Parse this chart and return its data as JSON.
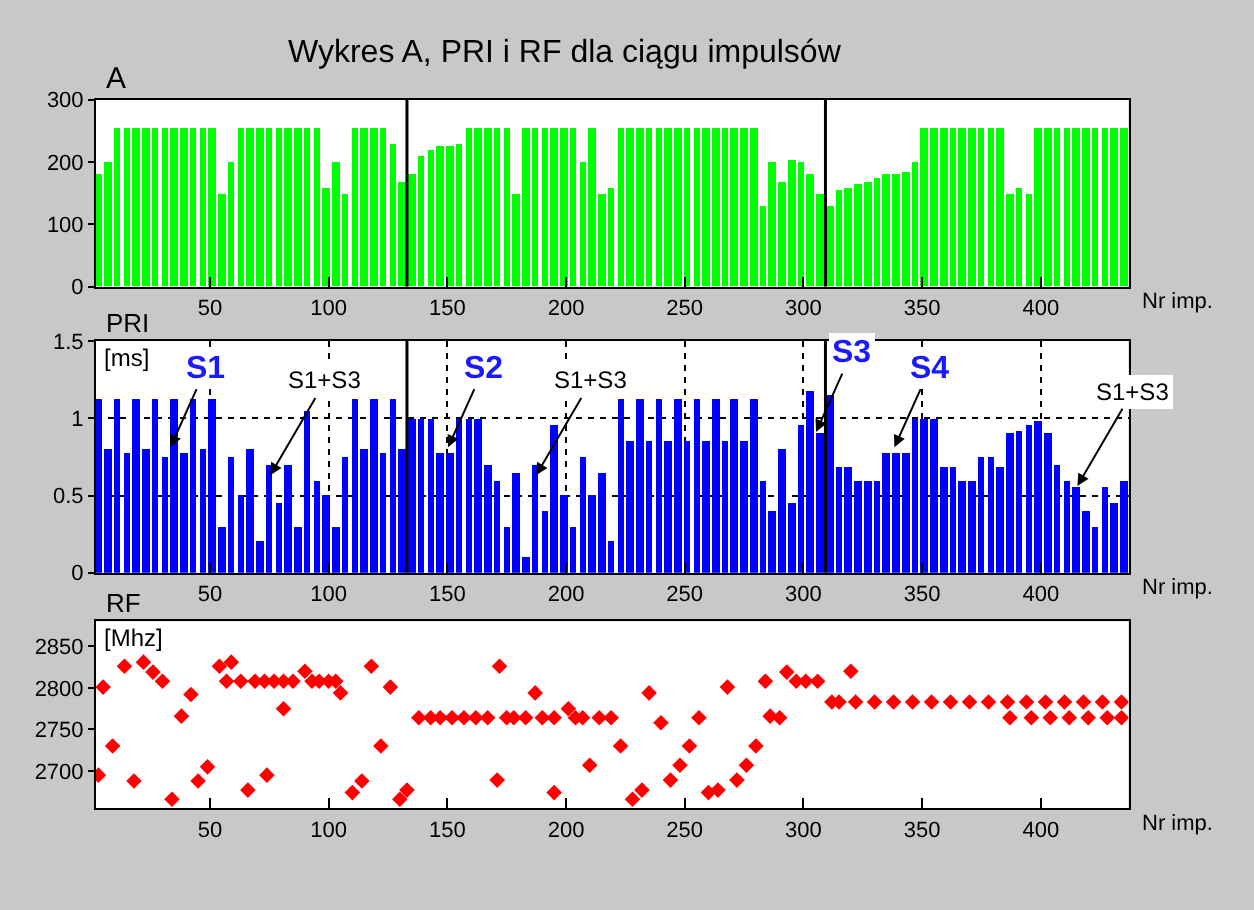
{
  "chart_data": [
    {
      "type": "bar",
      "title": "Wykres A, PRI i RF dla ciągu impulsów",
      "ylabel": "A",
      "xlabel": "Nr imp.",
      "color": "#00ff00",
      "x": [
        3,
        7,
        11,
        15,
        19,
        23,
        27,
        31,
        35,
        39,
        43,
        47,
        51,
        55,
        59,
        63,
        67,
        71,
        75,
        79,
        83,
        87,
        91,
        95,
        99,
        103,
        107,
        111,
        115,
        119,
        123,
        127,
        131,
        135,
        139,
        143,
        147,
        151,
        155,
        159,
        163,
        167,
        171,
        175,
        179,
        183,
        187,
        191,
        195,
        199,
        203,
        207,
        211,
        215,
        219,
        223,
        227,
        231,
        235,
        239,
        243,
        247,
        251,
        255,
        259,
        263,
        267,
        271,
        275,
        279,
        283,
        287,
        291,
        295,
        299,
        303,
        307,
        311,
        315,
        319,
        323,
        327,
        331,
        335,
        339,
        343,
        347,
        351,
        355,
        359,
        363,
        367,
        371,
        375,
        379,
        383,
        387,
        391,
        395,
        399,
        403,
        407,
        411,
        415,
        419,
        423,
        427,
        431,
        435
      ],
      "values": [
        180,
        200,
        255,
        255,
        255,
        255,
        255,
        255,
        255,
        255,
        255,
        255,
        255,
        150,
        200,
        255,
        255,
        255,
        255,
        255,
        255,
        255,
        255,
        255,
        160,
        200,
        150,
        255,
        255,
        255,
        255,
        230,
        170,
        180,
        210,
        220,
        225,
        225,
        230,
        255,
        255,
        255,
        255,
        255,
        150,
        255,
        255,
        255,
        255,
        255,
        255,
        200,
        255,
        150,
        160,
        255,
        255,
        255,
        255,
        255,
        255,
        255,
        255,
        255,
        255,
        255,
        255,
        255,
        255,
        255,
        130,
        200,
        170,
        205,
        200,
        180,
        150,
        130,
        155,
        160,
        165,
        170,
        175,
        180,
        180,
        185,
        200,
        255,
        255,
        255,
        255,
        255,
        255,
        255,
        255,
        255,
        150,
        160,
        150,
        255,
        255,
        255,
        255,
        255,
        255,
        255,
        255,
        255,
        255
      ],
      "xlim": [
        2,
        437
      ],
      "xticks": [
        50,
        100,
        150,
        200,
        250,
        300,
        350,
        400
      ],
      "ylim": [
        0,
        300
      ],
      "yticks": [
        0,
        100,
        200,
        300
      ],
      "grid": false,
      "ref_lines": [
        {
          "axis": "x",
          "value": 133,
          "color": "#000000"
        },
        {
          "axis": "x",
          "value": 309.3,
          "color": "#000000"
        }
      ]
    },
    {
      "type": "bar",
      "ylabel": "PRI",
      "xlabel": "Nr imp.",
      "color": "#0000ff",
      "x": [
        3,
        7,
        11,
        15,
        19,
        23,
        27,
        31,
        35,
        39,
        43,
        47,
        51,
        55,
        59,
        63,
        67,
        71,
        75,
        79,
        83,
        87,
        91,
        95,
        99,
        103,
        107,
        111,
        115,
        119,
        123,
        127,
        131,
        135,
        139,
        143,
        147,
        151,
        155,
        159,
        163,
        167,
        171,
        175,
        179,
        183,
        187,
        191,
        195,
        199,
        203,
        207,
        211,
        215,
        219,
        223,
        227,
        231,
        235,
        239,
        243,
        247,
        251,
        255,
        259,
        263,
        267,
        271,
        275,
        279,
        283,
        287,
        291,
        295,
        299,
        303,
        307,
        311,
        315,
        319,
        323,
        327,
        331,
        335,
        339,
        343,
        347,
        351,
        355,
        359,
        363,
        367,
        371,
        375,
        379,
        383,
        387,
        391,
        395,
        399,
        403,
        407,
        411,
        415,
        419,
        423,
        427,
        431,
        435
      ],
      "values": [
        1.13,
        0.8,
        1.13,
        0.78,
        1.13,
        0.8,
        1.13,
        0.75,
        1.13,
        0.78,
        1.13,
        0.8,
        1.13,
        0.3,
        0.75,
        0.5,
        0.8,
        0.2,
        0.7,
        0.45,
        0.7,
        0.3,
        1.05,
        0.6,
        0.5,
        0.3,
        0.75,
        1.13,
        0.8,
        1.13,
        0.78,
        1.13,
        0.8,
        1.0,
        1.0,
        1.0,
        0.78,
        0.78,
        1.0,
        1.0,
        1.0,
        0.7,
        0.6,
        0.3,
        0.65,
        0.1,
        0.7,
        0.4,
        0.95,
        0.5,
        0.3,
        0.75,
        0.5,
        0.65,
        0.2,
        1.13,
        0.85,
        1.13,
        0.85,
        1.13,
        0.85,
        1.13,
        0.85,
        1.13,
        0.85,
        1.13,
        0.85,
        1.13,
        0.85,
        1.13,
        0.6,
        0.4,
        0.8,
        0.45,
        0.95,
        1.18,
        0.9,
        1.15,
        0.68,
        0.68,
        0.6,
        0.6,
        0.6,
        0.78,
        0.78,
        0.78,
        1.0,
        1.0,
        1.0,
        0.68,
        0.68,
        0.6,
        0.6,
        0.75,
        0.75,
        0.68,
        0.9,
        0.92,
        0.95,
        0.98,
        0.9,
        0.7,
        0.6,
        0.55,
        0.4,
        0.3,
        0.55,
        0.45,
        0.6
      ],
      "xlim": [
        2,
        437
      ],
      "xticks": [
        50,
        100,
        150,
        200,
        250,
        300,
        350,
        400
      ],
      "ylim": [
        0,
        1.5
      ],
      "yticks": [
        0,
        0.5,
        1,
        1.5
      ],
      "grid": true,
      "ref_lines": [
        {
          "axis": "x",
          "value": 133,
          "color": "#000000"
        },
        {
          "axis": "x",
          "value": 309.3,
          "color": "#000000"
        }
      ],
      "annotations": [
        "[ms]",
        {
          "text": "S1",
          "x": 33,
          "y": 0.8
        },
        {
          "text": "S2",
          "x": 150,
          "y": 0.8
        },
        {
          "text": "S3",
          "x": 305,
          "y": 0.9
        },
        {
          "text": "S4",
          "x": 338,
          "y": 0.8
        },
        {
          "text": "S1+S3",
          "x": 75,
          "y": 0.62
        },
        {
          "text": "S1+S3",
          "x": 187,
          "y": 0.62
        },
        {
          "text": "S1+S3",
          "x": 415,
          "y": 0.55
        }
      ]
    },
    {
      "type": "scatter",
      "ylabel": "RF",
      "xlabel": "Nr imp.",
      "color": "#ff0000",
      "marker": "diamond",
      "x": [
        3,
        5,
        9,
        14,
        18,
        22,
        26,
        30,
        34,
        38,
        42,
        45,
        49,
        54,
        57,
        59,
        63,
        66,
        69,
        73,
        74,
        77,
        81,
        81,
        85,
        90,
        93,
        96,
        100,
        103,
        105,
        110,
        114,
        118,
        122,
        126,
        130,
        133,
        138,
        143,
        147,
        152,
        157,
        162,
        167,
        171,
        172,
        175,
        178,
        183,
        187,
        190,
        195,
        195,
        201,
        204,
        207,
        210,
        214,
        219,
        223,
        228,
        232,
        235,
        240,
        244,
        248,
        252,
        256,
        260,
        264,
        268,
        272,
        276,
        280,
        284,
        286,
        290,
        293,
        297,
        301,
        306,
        312,
        315,
        320,
        322,
        330,
        338,
        346,
        354,
        362,
        370,
        378,
        386,
        387,
        394,
        396,
        402,
        404,
        410,
        412,
        418,
        420,
        426,
        428,
        434,
        434
      ],
      "values": [
        2695,
        2801,
        2730,
        2826,
        2688,
        2831,
        2819,
        2808,
        2666,
        2766,
        2792,
        2688,
        2705,
        2826,
        2808,
        2831,
        2808,
        2677,
        2808,
        2808,
        2695,
        2808,
        2775,
        2808,
        2808,
        2820,
        2808,
        2808,
        2808,
        2808,
        2794,
        2674,
        2688,
        2826,
        2730,
        2801,
        2666,
        2677,
        2764,
        2764,
        2764,
        2764,
        2764,
        2764,
        2764,
        2689,
        2826,
        2764,
        2764,
        2764,
        2794,
        2764,
        2674,
        2764,
        2775,
        2764,
        2764,
        2707,
        2764,
        2764,
        2730,
        2666,
        2677,
        2794,
        2758,
        2689,
        2707,
        2730,
        2764,
        2674,
        2677,
        2801,
        2689,
        2707,
        2730,
        2808,
        2766,
        2764,
        2819,
        2808,
        2808,
        2808,
        2783,
        2783,
        2820,
        2783,
        2783,
        2783,
        2783,
        2783,
        2783,
        2783,
        2783,
        2783,
        2764,
        2783,
        2764,
        2783,
        2764,
        2783,
        2764,
        2783,
        2764,
        2783,
        2764,
        2783,
        2764
      ],
      "xlim": [
        2,
        437
      ],
      "xticks": [
        50,
        100,
        150,
        200,
        250,
        300,
        350,
        400
      ],
      "ylim": [
        2655,
        2880
      ],
      "yticks": [
        2700,
        2750,
        2800,
        2850
      ],
      "grid": false,
      "annotations": [
        "[Mhz]"
      ]
    }
  ]
}
